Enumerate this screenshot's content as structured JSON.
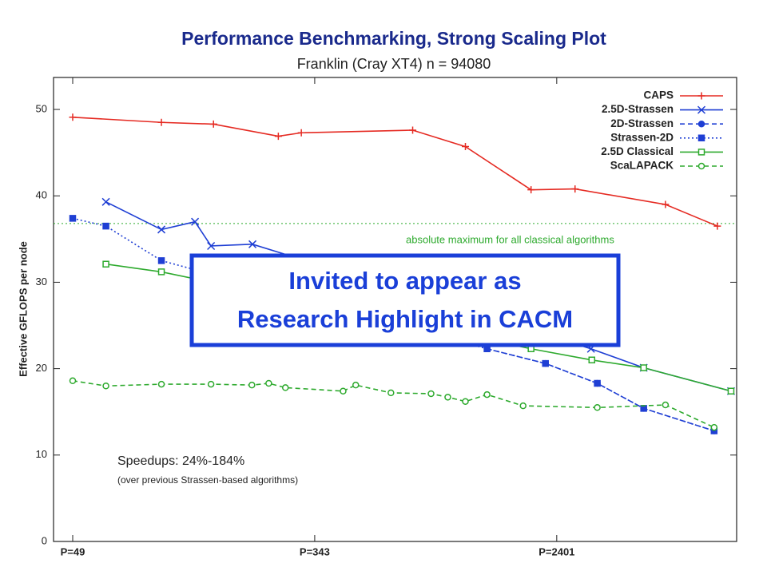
{
  "chart_data": {
    "type": "line",
    "title": "Performance Benchmarking, Strong Scaling Plot",
    "subtitle": "Franklin (Cray XT4) n = 94080",
    "y_label": "Effective GFLOPS per node",
    "log_x": true,
    "xlim": [
      42,
      10200
    ],
    "xticks": [
      {
        "value": 49,
        "label": "P=49"
      },
      {
        "value": 343,
        "label": "P=343"
      },
      {
        "value": 2401,
        "label": "P=2401"
      }
    ],
    "ylim": [
      0,
      53.7
    ],
    "yticks": [
      0,
      10,
      20,
      30,
      40,
      50
    ],
    "legend": "top-right",
    "series": [
      {
        "name": "CAPS",
        "color": "#e52a22",
        "marker": "plus",
        "dash": "solid",
        "x": [
          49,
          100,
          152,
          256,
          308,
          754,
          1152,
          1953,
          2782,
          5754,
          8735
        ],
        "values": [
          49.1,
          48.5,
          48.3,
          46.9,
          47.3,
          47.6,
          45.7,
          40.7,
          40.8,
          39.0,
          36.5
        ]
      },
      {
        "name": "2.5D-Strassen",
        "color": "#1f3fd4",
        "marker": "cross",
        "dash": "solid",
        "x": [
          64,
          100,
          131,
          149,
          208,
          3162,
          4831,
          9750
        ],
        "values": [
          39.3,
          36.1,
          37.0,
          34.2,
          34.4,
          22.3,
          20.1,
          17.4
        ]
      },
      {
        "name": "2D-Strassen",
        "color": "#1f3fd4",
        "marker": "filled-circle",
        "dash": "dashed",
        "x": [
          1371,
          2193,
          3327,
          4831,
          8511
        ],
        "values": [
          22.3,
          20.6,
          18.3,
          15.4,
          12.8
        ]
      },
      {
        "name": "Strassen-2D",
        "color": "#1f3fd4",
        "marker": "filled-square",
        "dash": "dotted",
        "x": [
          49,
          64,
          100,
          1371,
          2193,
          3327,
          4831,
          8511
        ],
        "values": [
          37.4,
          36.5,
          32.5,
          22.3,
          20.6,
          18.3,
          15.4,
          12.8
        ]
      },
      {
        "name": "2.5D Classical",
        "color": "#2eaa2e",
        "marker": "open-square",
        "dash": "solid",
        "x": [
          64,
          100,
          1953,
          3184,
          4831,
          9750
        ],
        "values": [
          32.1,
          31.2,
          22.3,
          21.0,
          20.1,
          17.4
        ]
      },
      {
        "name": "ScaLAPACK",
        "color": "#2eaa2e",
        "marker": "open-circle",
        "dash": "dashed",
        "x": [
          49,
          64,
          100,
          149,
          207,
          237,
          271,
          431,
          477,
          633,
          874,
          1000,
          1152,
          1371,
          1832,
          3327,
          5754,
          8511
        ],
        "values": [
          18.6,
          18.0,
          18.2,
          18.2,
          18.1,
          18.3,
          17.8,
          17.4,
          18.1,
          17.2,
          17.1,
          16.7,
          16.2,
          17.0,
          15.7,
          15.5,
          15.8,
          13.2
        ]
      }
    ],
    "hline": {
      "value": 36.8,
      "color": "#2eaa2e",
      "label": "absolute maximum for all classical algorithms"
    },
    "callout": [
      "Invited to appear as",
      "Research Highlight in CACM"
    ],
    "note": [
      "Speedups: 24%-184%",
      "(over previous Strassen-based algorithms)"
    ]
  }
}
